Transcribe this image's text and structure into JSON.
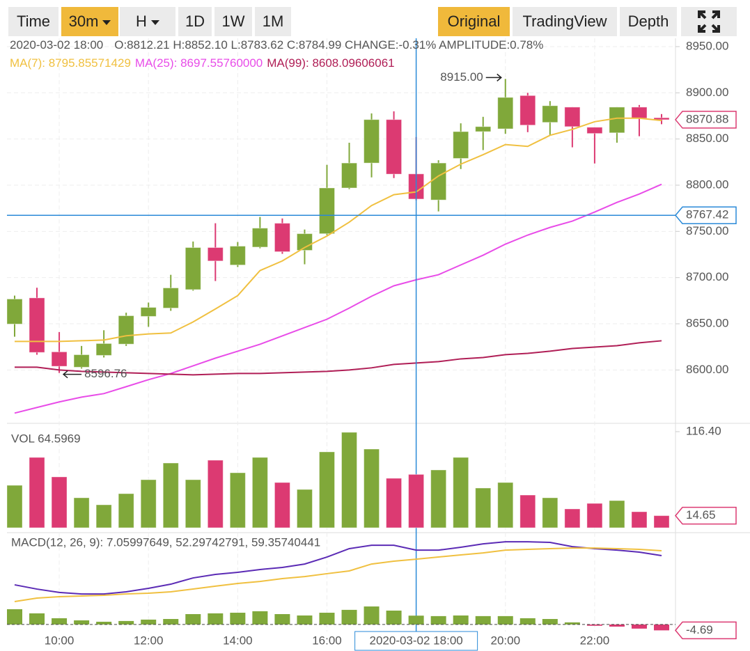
{
  "toolbar": {
    "left": [
      "Time",
      "30m",
      "H",
      "1D",
      "1W",
      "1M"
    ],
    "left_active": 1,
    "left_dropdowns": [
      1,
      2
    ],
    "right": [
      "Original",
      "TradingView",
      "Depth"
    ],
    "right_active": 0
  },
  "info": {
    "date": "2020-03-02 18:00",
    "text": "O:8812.21 H:8852.10 L:8783.62 C:8784.99 CHANGE:-0.31% AMPLITUDE:0.78%"
  },
  "chart_data": [
    {
      "type": "candlestick",
      "up_color": "#80a83a",
      "down_color": "#dc3a72",
      "categories": [
        null,
        null,
        "10:00",
        null,
        null,
        null,
        "12:00",
        null,
        null,
        null,
        "14:00",
        null,
        null,
        null,
        "16:00",
        null,
        null,
        null,
        null,
        null,
        null,
        null,
        "20:00",
        null,
        null,
        null,
        "22:00",
        null,
        null,
        null
      ],
      "open": [
        8649.7,
        8678,
        8619.6,
        8603,
        8615.8,
        8628,
        8658,
        8667,
        8687,
        8732.5,
        8713.6,
        8733,
        8758.8,
        8729.5,
        8747.5,
        8797,
        8824,
        8871,
        8812.21,
        8784,
        8829,
        8858,
        8861,
        8897,
        8868,
        8884.5,
        8862.7,
        8856.7,
        8884.5,
        8873
      ],
      "high": [
        8680.5,
        8689,
        8641,
        8626,
        8643,
        8662,
        8673,
        8703,
        8739,
        8758.8,
        8738.5,
        8765.6,
        8764,
        8752,
        8822,
        8846,
        8877.7,
        8880,
        8852.1,
        8827,
        8867,
        8874,
        8915,
        8900,
        8891,
        8884.5,
        8862.7,
        8884.5,
        8886.8,
        8877
      ],
      "low": [
        8636,
        8616.5,
        8596.76,
        8601.5,
        8613.5,
        8626,
        8646.7,
        8664,
        8685.8,
        8696.3,
        8711.4,
        8731.7,
        8725.7,
        8714.4,
        8746,
        8795.7,
        8808.5,
        8807.7,
        8783.62,
        8771.6,
        8817.5,
        8838,
        8855.6,
        8857.4,
        8853.6,
        8841,
        8823.5,
        8846,
        8853,
        8866
      ],
      "close": [
        8676.8,
        8619,
        8604,
        8616.5,
        8628.6,
        8658.7,
        8667.7,
        8688.8,
        8732.5,
        8718,
        8734,
        8753.5,
        8728,
        8747.5,
        8797,
        8824,
        8871,
        8812,
        8784.99,
        8824,
        8858,
        8863.4,
        8895,
        8865,
        8886,
        8863.4,
        8856,
        8884.5,
        8872.5,
        8870.88
      ],
      "series": [
        {
          "name": "MA(7): 8795.85571429",
          "color": "#f0c040",
          "values": [
            8630.9,
            8630.9,
            8630.9,
            8631.6,
            8632.4,
            8637,
            8639,
            8640,
            8652,
            8666,
            8680.5,
            8707.6,
            8718,
            8732.5,
            8745,
            8760,
            8778,
            8789.7,
            8792.7,
            8810,
            8822.8,
            8833,
            8844,
            8842,
            8854,
            8860.4,
            8868.7,
            8872.5,
            8872.5,
            8870
          ]
        },
        {
          "name": "MA(25): 8697.55760000",
          "color": "#e84ce8",
          "values": [
            8553.3,
            8559.4,
            8565.4,
            8570.6,
            8574.4,
            8581.9,
            8589.5,
            8596.2,
            8604.5,
            8612.8,
            8620.3,
            8627.8,
            8636.9,
            8645.9,
            8654.9,
            8667,
            8679.8,
            8691.1,
            8697.6,
            8703.1,
            8713.7,
            8724.2,
            8736.2,
            8746,
            8754.3,
            8761.1,
            8770.9,
            8781.4,
            8790.4,
            8801
          ]
        },
        {
          "name": "MA(99): 8608.09606061",
          "color": "#b01e56",
          "values": [
            8603,
            8603,
            8600,
            8598.5,
            8597.7,
            8597,
            8596.2,
            8595.5,
            8594.7,
            8595.5,
            8596.2,
            8596.2,
            8597,
            8597.7,
            8598.5,
            8600,
            8602.3,
            8606,
            8607.5,
            8609,
            8612,
            8613.5,
            8616.6,
            8618,
            8620.3,
            8623.3,
            8624.8,
            8626.3,
            8629.4,
            8631.6
          ]
        }
      ],
      "ylim": [
        8543,
        8959
      ],
      "yticks": [
        {
          "value": 8600,
          "label": "8600.00"
        },
        {
          "value": 8650,
          "label": "8650.00"
        },
        {
          "value": 8700,
          "label": "8700.00"
        },
        {
          "value": 8750,
          "label": "8750.00"
        },
        {
          "value": 8800,
          "label": "8800.00"
        },
        {
          "value": 8850,
          "label": "8850.00"
        },
        {
          "value": 8900,
          "label": "8900.00"
        },
        {
          "value": 8950,
          "label": "8950.00"
        }
      ],
      "grid": true,
      "annotations": [
        {
          "value": 8915,
          "label": "8915.00"
        },
        {
          "value": 8596.76,
          "label": "8596.76"
        }
      ],
      "last_price": 8870.88,
      "crosshair": {
        "value": 8767.42,
        "index": 18,
        "label": "2020-03-02 18:00"
      }
    },
    {
      "type": "volume",
      "title": "VOL 64.5969",
      "up_color": "#80a83a",
      "down_color": "#dc3a72",
      "values": [
        51.4,
        85.2,
        61.6,
        36.3,
        27.8,
        41.3,
        58.2,
        78.4,
        58.2,
        81.8,
        66.6,
        85.2,
        54.8,
        46.4,
        91.9,
        115.6,
        95.3,
        59.9,
        64.5969,
        70,
        85.2,
        48.1,
        54.8,
        39.6,
        36.3,
        22.8,
        29.5,
        32.9,
        19.4,
        14.65
      ],
      "ylim": [
        0,
        124.8
      ],
      "yticks": [
        {
          "value": 116.4,
          "label": "116.40"
        }
      ],
      "last_value": 14.65
    },
    {
      "type": "macd",
      "title": "MACD(12, 26, 9): 7.05997649, 52.29742791, 59.35740441",
      "up_color": "#80a83a",
      "down_color": "#dc3a72",
      "values": [
        12.2,
        8.9,
        5,
        3.3,
        2.2,
        2.8,
        3.9,
        4.4,
        8.3,
        8.9,
        9.4,
        10.6,
        8.3,
        7.2,
        9.4,
        11.7,
        14.4,
        11.1,
        7.05997649,
        6.7,
        7.2,
        6.7,
        6.7,
        5,
        4.4,
        1.7,
        -1,
        -1.7,
        -3.3,
        -4.69
      ],
      "series": [
        {
          "color": "#5b2bb5",
          "values": [
            31.7,
            28.3,
            25.6,
            24.4,
            24.4,
            26.1,
            28.9,
            32.2,
            37.2,
            40,
            41.7,
            43.9,
            45.6,
            48.3,
            53.9,
            60.6,
            63.3,
            63.3,
            59.4,
            59.4,
            61.7,
            64.4,
            66.1,
            66.1,
            65.6,
            62.2,
            60.6,
            59.4,
            57.8,
            55
          ]
        },
        {
          "color": "#f0c040",
          "values": [
            18.3,
            21.1,
            22.2,
            22.8,
            23.3,
            24.4,
            25,
            26.1,
            28.3,
            30.6,
            32.8,
            34.4,
            36.7,
            38.3,
            40.6,
            42.8,
            48.3,
            50.6,
            52.2,
            53.9,
            55.6,
            57.2,
            59.4,
            60,
            60.6,
            61.1,
            61.1,
            60.6,
            60,
            58.9
          ]
        }
      ],
      "ylim": [
        -5.6,
        70.6
      ],
      "last_value": -4.69
    }
  ]
}
